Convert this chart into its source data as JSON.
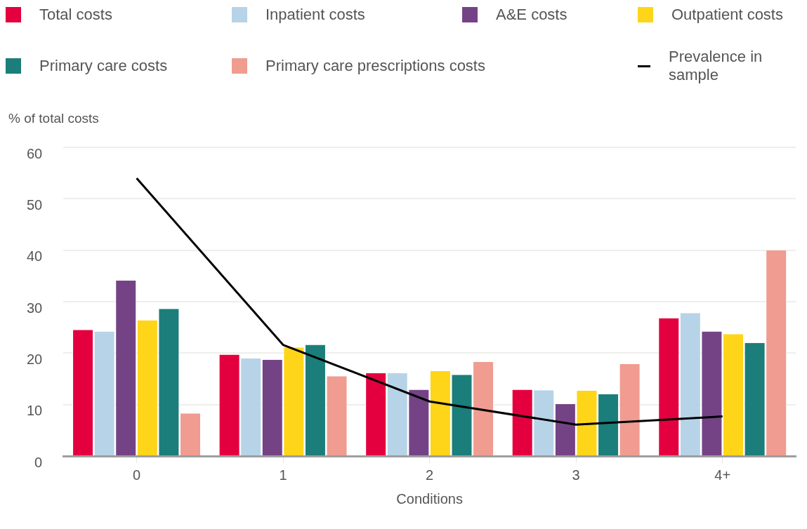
{
  "chart_data": {
    "type": "bar",
    "ylabel": "% of total costs",
    "xlabel": "Conditions",
    "categories": [
      "0",
      "1",
      "2",
      "3",
      "4+"
    ],
    "series": [
      {
        "name": "Total costs",
        "color": "#e4003f",
        "values": [
          24.5,
          19.7,
          16.1,
          12.9,
          26.8
        ]
      },
      {
        "name": "Inpatient costs",
        "color": "#b7d3e8",
        "values": [
          24.2,
          19.0,
          16.1,
          12.8,
          27.8
        ]
      },
      {
        "name": "A&E costs",
        "color": "#744385",
        "values": [
          34.1,
          18.7,
          12.9,
          10.1,
          24.2
        ]
      },
      {
        "name": "Outpatient costs",
        "color": "#fed518",
        "values": [
          26.4,
          21.1,
          16.5,
          12.7,
          23.7
        ]
      },
      {
        "name": "Primary care costs",
        "color": "#1b7e7a",
        "values": [
          28.6,
          21.6,
          15.8,
          12.0,
          22.0
        ]
      },
      {
        "name": "Primary care prescriptions costs",
        "color": "#f09c90",
        "values": [
          8.3,
          15.5,
          18.3,
          17.9,
          40.0
        ]
      },
      {
        "name": "Prevalence in sample",
        "type": "line",
        "color": "#000000",
        "values": [
          54.0,
          21.6,
          10.6,
          6.1,
          7.7
        ]
      }
    ],
    "ylim": [
      0,
      60
    ],
    "yticks": [
      0,
      10,
      20,
      30,
      40,
      50,
      60
    ],
    "grid": "y",
    "legend": "top",
    "marker": "none",
    "line_style": "solid"
  }
}
